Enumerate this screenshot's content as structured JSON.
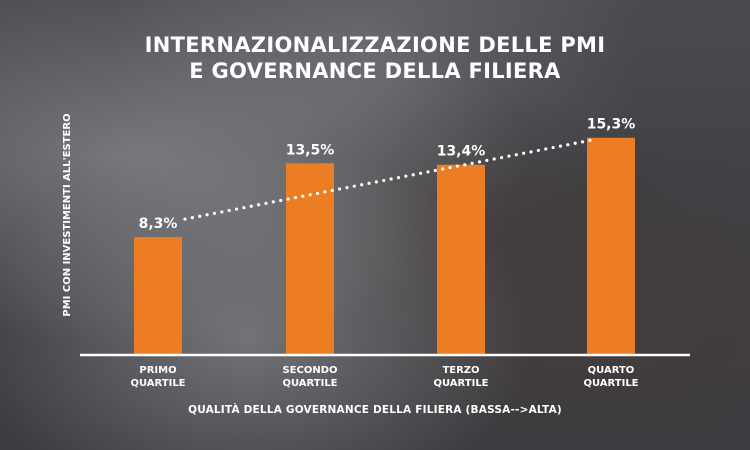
{
  "chart_data": {
    "type": "bar",
    "title_lines": [
      "INTERNAZIONALIZZAZIONE DELLE PMI",
      "E GOVERNANCE DELLA FILIERA"
    ],
    "ylabel": "PMI CON INVESTIMENTI ALL'ESTERO",
    "xlabel": "QUALITÀ DELLA GOVERNANCE DELLA FILIERA (BASSA-->ALTA)",
    "categories": [
      [
        "PRIMO",
        "QUARTILE"
      ],
      [
        "SECONDO",
        "QUARTILE"
      ],
      [
        "TERZO",
        "QUARTILE"
      ],
      [
        "QUARTO",
        "QUARTILE"
      ]
    ],
    "values": [
      8.3,
      13.5,
      13.4,
      15.3
    ],
    "value_labels": [
      "8,3%",
      "13,5%",
      "13,4%",
      "15,3%"
    ],
    "ylim": [
      0,
      18
    ],
    "trendline": "dotted",
    "grid": false,
    "colors": {
      "bar": "#EC7D22",
      "text": "#FFFFFF",
      "axis": "#FFFFFF",
      "trend": "#FFFFFF"
    }
  }
}
